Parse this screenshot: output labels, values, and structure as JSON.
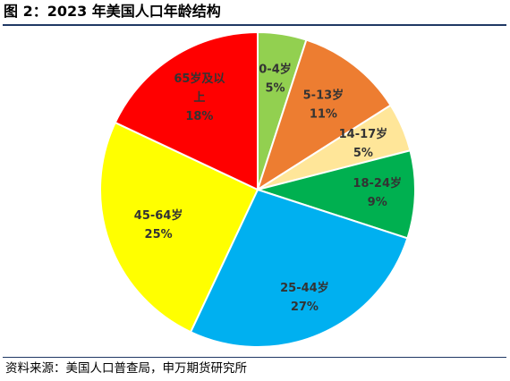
{
  "figure": {
    "title": "图 2：2023 年美国人口年龄结构",
    "source": "资料来源：美国人口普查局，申万期货研究所"
  },
  "chart_data": {
    "type": "pie",
    "title": "",
    "slices": [
      {
        "label": "0-4岁",
        "label_lines": [
          "0-4岁"
        ],
        "value": 5,
        "value_text": "5%",
        "color": "#92d050",
        "text_color": "#333333"
      },
      {
        "label": "5-13岁",
        "label_lines": [
          "5-13岁"
        ],
        "value": 11,
        "value_text": "11%",
        "color": "#ed7d31",
        "text_color": "#333333"
      },
      {
        "label": "14-17岁",
        "label_lines": [
          "14-17岁"
        ],
        "value": 5,
        "value_text": "5%",
        "color": "#ffe699",
        "text_color": "#333333"
      },
      {
        "label": "18-24岁",
        "label_lines": [
          "18-24岁"
        ],
        "value": 9,
        "value_text": "9%",
        "color": "#00b050",
        "text_color": "#333333"
      },
      {
        "label": "25-44岁",
        "label_lines": [
          "25-44岁"
        ],
        "value": 27,
        "value_text": "27%",
        "color": "#00b0f0",
        "text_color": "#333333"
      },
      {
        "label": "45-64岁",
        "label_lines": [
          "45-64岁"
        ],
        "value": 25,
        "value_text": "25%",
        "color": "#ffff00",
        "text_color": "#333333"
      },
      {
        "label": "65岁及以上",
        "label_lines": [
          "65岁及以",
          "上"
        ],
        "value": 18,
        "value_text": "18%",
        "color": "#ff0000",
        "text_color": "#333333"
      }
    ],
    "legend": "none"
  }
}
